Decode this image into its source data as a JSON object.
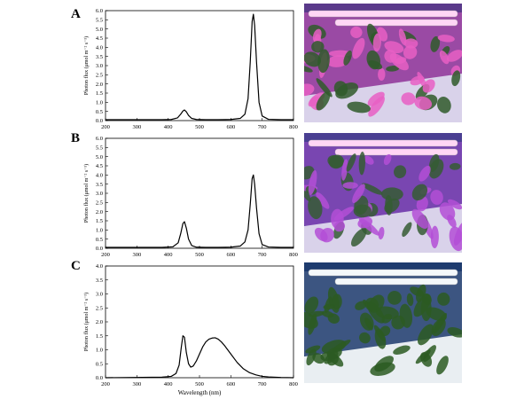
{
  "panels": [
    {
      "letter": "A",
      "glow": "#e85fc4",
      "leaf": "#2f5a2a"
    },
    {
      "letter": "B",
      "glow": "#b34fd6",
      "leaf": "#355c34"
    },
    {
      "letter": "C",
      "glow": "#e8eef0",
      "leaf": "#2b5a22"
    }
  ],
  "chart_data": [
    {
      "type": "line",
      "panel": "A",
      "ylabel": "Photon flux (μmol m⁻² s⁻¹)",
      "xlabel": "",
      "xlim": [
        200,
        800
      ],
      "ylim": [
        0,
        6.0
      ],
      "x_ticks": [
        200,
        300,
        400,
        500,
        600,
        700,
        800
      ],
      "y_ticks": [
        "0.0",
        "0.5",
        "1.0",
        "1.5",
        "2.0",
        "2.5",
        "3.0",
        "3.5",
        "4.0",
        "4.5",
        "5.0",
        "5.5",
        "6.0"
      ],
      "series": [
        {
          "x": [
            200,
            380,
            410,
            430,
            440,
            447,
            452,
            458,
            465,
            475,
            490,
            520,
            560,
            600,
            630,
            645,
            655,
            662,
            668,
            672,
            676,
            682,
            690,
            700,
            720,
            760,
            800
          ],
          "y": [
            0.05,
            0.05,
            0.06,
            0.15,
            0.35,
            0.52,
            0.58,
            0.48,
            0.28,
            0.12,
            0.06,
            0.05,
            0.05,
            0.06,
            0.12,
            0.35,
            1.2,
            3.2,
            5.4,
            5.8,
            5.2,
            3.2,
            1.0,
            0.25,
            0.07,
            0.05,
            0.05
          ]
        }
      ]
    },
    {
      "type": "line",
      "panel": "B",
      "ylabel": "Photon flux (μmol m⁻² s⁻¹)",
      "xlabel": "",
      "xlim": [
        200,
        800
      ],
      "ylim": [
        0,
        6.0
      ],
      "x_ticks": [
        200,
        300,
        400,
        500,
        600,
        700,
        800
      ],
      "y_ticks": [
        "0.0",
        "0.5",
        "1.0",
        "1.5",
        "2.0",
        "2.5",
        "3.0",
        "3.5",
        "4.0",
        "4.5",
        "5.0",
        "5.5",
        "6.0"
      ],
      "series": [
        {
          "x": [
            200,
            380,
            415,
            432,
            440,
            447,
            452,
            458,
            465,
            475,
            490,
            520,
            560,
            600,
            630,
            645,
            655,
            662,
            668,
            672,
            676,
            682,
            690,
            700,
            720,
            760,
            800
          ],
          "y": [
            0.05,
            0.05,
            0.08,
            0.3,
            0.8,
            1.35,
            1.45,
            1.1,
            0.5,
            0.15,
            0.06,
            0.05,
            0.05,
            0.06,
            0.12,
            0.35,
            1.0,
            2.4,
            3.8,
            4.0,
            3.5,
            2.2,
            0.8,
            0.2,
            0.07,
            0.05,
            0.05
          ]
        }
      ]
    },
    {
      "type": "line",
      "panel": "C",
      "ylabel": "Photon flux (μmol m⁻² s⁻¹)",
      "xlabel": "Wavelength (nm)",
      "xlim": [
        200,
        800
      ],
      "ylim": [
        0,
        4.0
      ],
      "x_ticks": [
        200,
        300,
        400,
        500,
        600,
        700,
        800
      ],
      "y_ticks": [
        "0.0",
        "0.5",
        "1.0",
        "1.5",
        "2.0",
        "2.5",
        "3.0",
        "3.5",
        "4.0"
      ],
      "series": [
        {
          "x": [
            200,
            380,
            410,
            425,
            435,
            442,
            447,
            452,
            458,
            465,
            472,
            480,
            490,
            500,
            510,
            520,
            530,
            540,
            550,
            560,
            570,
            580,
            590,
            600,
            620,
            640,
            660,
            680,
            700,
            720,
            760,
            800
          ],
          "y": [
            0.0,
            0.02,
            0.05,
            0.15,
            0.45,
            1.1,
            1.5,
            1.45,
            0.9,
            0.5,
            0.38,
            0.42,
            0.6,
            0.85,
            1.1,
            1.28,
            1.38,
            1.42,
            1.43,
            1.38,
            1.28,
            1.15,
            1.0,
            0.85,
            0.55,
            0.32,
            0.18,
            0.1,
            0.05,
            0.03,
            0.01,
            0.0
          ]
        }
      ]
    }
  ]
}
